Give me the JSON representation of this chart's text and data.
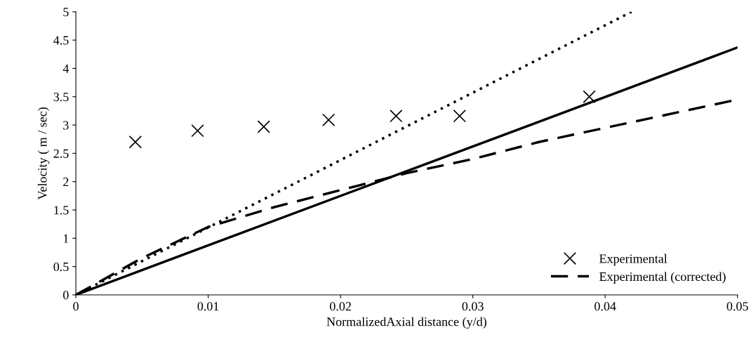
{
  "chart_data": {
    "type": "line",
    "xlabel": "NormalizedAxial distance (y/d)",
    "ylabel": "Velocity ( m / sec)",
    "xlim": [
      0,
      0.05
    ],
    "ylim": [
      0,
      5
    ],
    "xticks": [
      0,
      0.01,
      0.02,
      0.03,
      0.04,
      0.05
    ],
    "yticks": [
      0,
      0.5,
      1,
      1.5,
      2,
      2.5,
      3,
      3.5,
      4,
      4.5,
      5
    ],
    "grid": false,
    "legend": "bottom right",
    "series": [
      {
        "name": "Experimental",
        "type": "scatter",
        "marker": "cross",
        "color": "#000000",
        "x": [
          0.0045,
          0.0092,
          0.0142,
          0.0191,
          0.0242,
          0.029,
          0.0388
        ],
        "values": [
          2.7,
          2.9,
          2.97,
          3.09,
          3.16,
          3.16,
          3.5
        ]
      },
      {
        "name": "Experimental (corrected)",
        "line_style": "dashed",
        "marker": "none",
        "color": "#000000",
        "x": [
          0,
          0.005,
          0.01,
          0.015,
          0.02,
          0.025,
          0.03,
          0.035,
          0.04,
          0.05
        ],
        "values": [
          0,
          0.65,
          1.2,
          1.55,
          1.85,
          2.15,
          2.4,
          2.7,
          2.95,
          3.45
        ]
      },
      {
        "line_style": "solid",
        "marker": "none",
        "color": "#000000",
        "x": [
          0,
          0.05
        ],
        "values": [
          0,
          4.37
        ]
      },
      {
        "line_style": "dotted",
        "marker": "none",
        "color": "#000000",
        "x": [
          0,
          0.042
        ],
        "values": [
          0,
          5
        ]
      }
    ]
  }
}
